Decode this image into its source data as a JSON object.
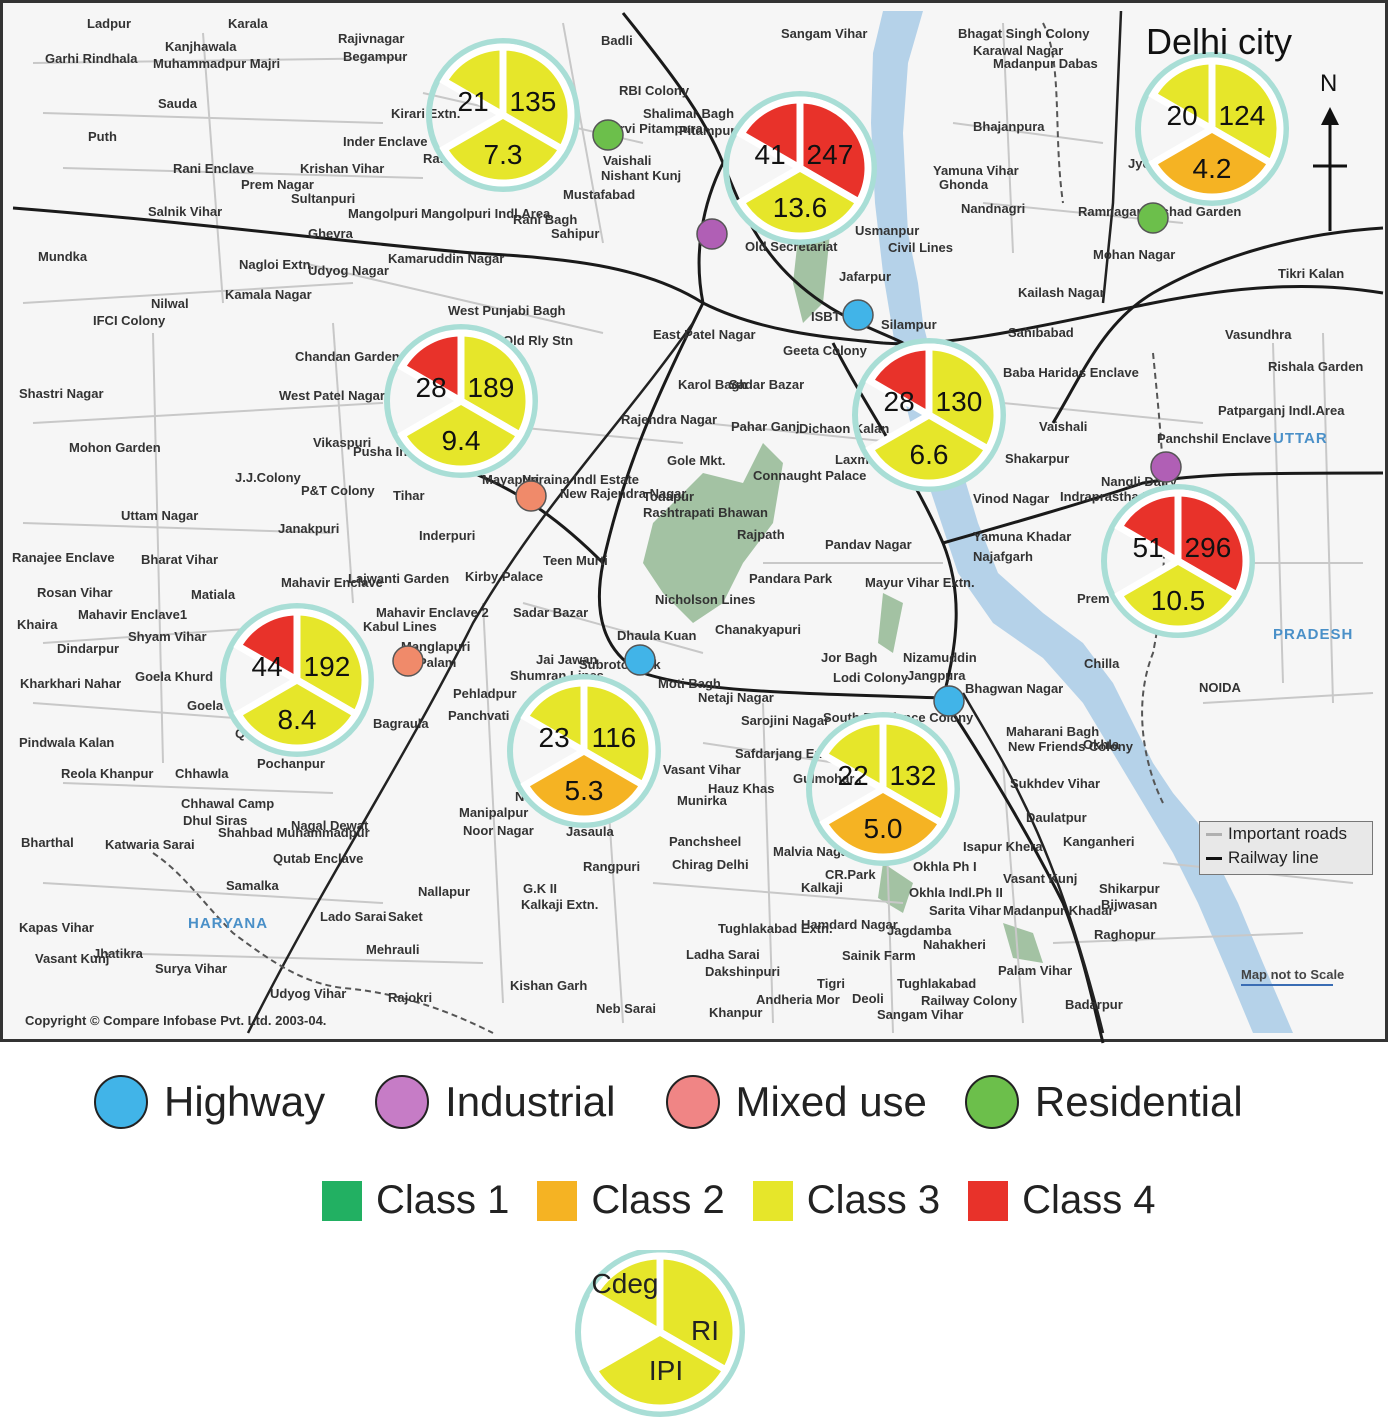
{
  "map": {
    "title": "Delhi city",
    "north_label": "N",
    "copyright": "Copyright © Compare Infobase Pvt. Ltd. 2003-04.",
    "scale_note": "Map not to Scale",
    "legend_box": {
      "roads": "Important roads",
      "rail": "Railway line"
    },
    "regions": [
      "HARYANA",
      "UTTAR",
      "PRADESH"
    ],
    "places": [
      "Ladpur",
      "Karala",
      "Rajivnagar",
      "Begampur",
      "Garhi Rindhala",
      "Kanjhawala",
      "Muhammadpur Majri",
      "Badli",
      "Sangam Vihar",
      "Bhagat Singh Colony",
      "Karawal Nagar",
      "Madanpur Dabas",
      "Sauda",
      "Puth",
      "Kirari Extn.",
      "Inder Enclave",
      "Krishan Vihar",
      "Rasulpur",
      "Rani Enclave",
      "Prem Nagar",
      "Sultanpuri",
      "Mangolpuri",
      "Mangolpuri Indl.Area",
      "Ghevra",
      "Salnik Vihar",
      "Rani Bagh",
      "Sahipur",
      "RBI Colony",
      "Shalimar Bagh",
      "Pitampura",
      "Purvi Pitampura",
      "Vaishali",
      "Nishant Kunj",
      "Mustafabad",
      "Bhajanpura",
      "Yamuna Vihar",
      "Ghonda",
      "Nandnagri",
      "Jyotinagar East",
      "Ramnagar Dilshad Garden",
      "Mohan Nagar",
      "Tikri Kalan",
      "Mundka",
      "Nagloi Extn.",
      "Udyog Nagar",
      "Kamaruddin Nagar",
      "Kamala Nagar",
      "Old Secretariat",
      "Usmanpur",
      "Civil Lines",
      "Jafarpur",
      "Nilwal",
      "IFCI Colony",
      "West Punjabi Bagh",
      "Old Rly Stn",
      "ISBT",
      "Silampur",
      "Kailash Nagar",
      "Sahibabad",
      "Vasundhra",
      "Rishala Garden",
      "Chandan Garden",
      "West Patel Nagar",
      "East Patel Nagar",
      "Karol Bagh",
      "Sadar Bazar",
      "Geeta Colony",
      "Baba Haridas Enclave",
      "Shastri Nagar",
      "Vaishali",
      "Patparganj Indl.Area",
      "Panchshil Enclave",
      "Vikaspuri",
      "Pusha Institute",
      "Rajendra Nagar",
      "Pahar Ganj",
      "Dichaon Kalan",
      "Mohon Garden",
      "J.J.Colony",
      "P&T Colony",
      "Tihar",
      "Mayapuri",
      "Naraina Indl Estate",
      "New Rajendra Nagar",
      "Gole Mkt.",
      "Connaught Palace",
      "Laxmi Nagar",
      "Shakarpur",
      "Vinod Nagar",
      "Indraprastha Extn.",
      "Nangli Dairy",
      "Uttam Nagar",
      "Janakpuri",
      "Inderpuri",
      "Todapur",
      "Rashtrapati Bhawan",
      "Rajpath",
      "Pandav Nagar",
      "Yamuna Khadar",
      "Najafgarh",
      "Ranajee Enclave",
      "Bharat Vihar",
      "Matiala",
      "Mahavir Enclave",
      "Lajwanti Garden",
      "Kirby Palace",
      "Teen Murti",
      "Pandara Park",
      "Mayur Vihar Extn.",
      "Prem Nagar",
      "Rosan Vihar",
      "Mahavir Enclave1",
      "Mahavir Enclave 2",
      "Kabul Lines",
      "Sadar Bazar",
      "Nicholson Lines",
      "Dhaula Kuan",
      "Chanakyapuri",
      "Khaira",
      "Shyam Vihar",
      "Dindarpur",
      "Manglapuri",
      "Palam",
      "Jai Jawan",
      "Shumran Lines",
      "Subroto Park",
      "Moti Bagh",
      "Jor Bagh",
      "Lodi Colony",
      "Nizamuddin",
      "Jangpura",
      "Bhagwan Nagar",
      "Chilla",
      "NOIDA",
      "Kharkhari Nahar",
      "Goela Khurd",
      "Goela",
      "Qutub Vihar",
      "Pochanpur",
      "Bagraula",
      "Pehladpur",
      "Panchvati",
      "Netaji Nagar",
      "Sarojini Nagar",
      "Defence Colony",
      "South Extn.",
      "Maharani Bagh",
      "New Friends Colony",
      "Okhla",
      "Pindwala Kalan",
      "Reola Khanpur",
      "Chhawla",
      "Safdarjang Enclave",
      "Hauz Khas",
      "Gulmohar Park",
      "Vasant Vihar",
      "Munirka",
      "Naraina",
      "Sukhdev Vihar",
      "Chhawal Camp",
      "Dhul Siras",
      "Shahbad Muhammadpur",
      "Nagal Dewat",
      "Manipalpur",
      "Noor Nagar",
      "Jasaula",
      "Daulatpur",
      "Kanganheri",
      "Bharthal",
      "Katwaria Sarai",
      "Qutab Enclave",
      "Panchsheel",
      "Chirag Delhi",
      "Malvia Nagar",
      "CR.Park",
      "Kalkaji",
      "Okhla Ph I",
      "Isapur Khera",
      "Vasant Kunj",
      "Samalka",
      "Rangpuri",
      "Nallapur",
      "G.K II",
      "Kalkaji Extn.",
      "Okhla Indl.Ph II",
      "Sarita Vihar",
      "Madanpur Khadar",
      "Shikarpur",
      "Bijwasan",
      "Kapas Vihar",
      "Lado Sarai",
      "Saket",
      "Tughlakabad Extn.",
      "Hamdard Nagar",
      "Jagdamba",
      "Nahakheri",
      "Raghopur",
      "Jhatikra",
      "Surya Vihar",
      "Vasant Kunj",
      "Mehrauli",
      "Ladha Sarai",
      "Dakshinpuri",
      "Sainik Farm",
      "Tigri",
      "Tughlakabad",
      "Palam Vihar",
      "Udyog Vihar",
      "Rajokri",
      "Kishan Garh",
      "Neb Sarai",
      "Andheria Mor",
      "Khanpur",
      "Deoli",
      "Sangam Vihar",
      "Railway Colony",
      "Badarpur"
    ]
  },
  "sites": [
    {
      "type": "Residential",
      "color": "#6cbf4b"
    },
    {
      "type": "Industrial",
      "color": "#b05fb5"
    },
    {
      "type": "Highway",
      "color": "#41b4e8"
    },
    {
      "type": "Industrial",
      "color": "#b05fb5"
    },
    {
      "type": "Residential",
      "color": "#6cbf4b"
    },
    {
      "type": "Mixed use",
      "color": "#f08a6a"
    },
    {
      "type": "Mixed use",
      "color": "#f08a6a"
    },
    {
      "type": "Highway",
      "color": "#41b4e8"
    },
    {
      "type": "Highway",
      "color": "#41b4e8"
    }
  ],
  "pies": [
    {
      "cdeg": "21",
      "ri": "135",
      "ipi": "7.3",
      "cdeg_class": "Class 3",
      "ri_class": "Class 3",
      "ipi_class": "Class 3"
    },
    {
      "cdeg": "41",
      "ri": "247",
      "ipi": "13.6",
      "cdeg_class": "Class 4",
      "ri_class": "Class 4",
      "ipi_class": "Class 3"
    },
    {
      "cdeg": "20",
      "ri": "124",
      "ipi": "4.2",
      "cdeg_class": "Class 3",
      "ri_class": "Class 3",
      "ipi_class": "Class 2"
    },
    {
      "cdeg": "28",
      "ri": "189",
      "ipi": "9.4",
      "cdeg_class": "Class 4",
      "ri_class": "Class 3",
      "ipi_class": "Class 3"
    },
    {
      "cdeg": "28",
      "ri": "130",
      "ipi": "6.6",
      "cdeg_class": "Class 4",
      "ri_class": "Class 3",
      "ipi_class": "Class 3"
    },
    {
      "cdeg": "51",
      "ri": "296",
      "ipi": "10.5",
      "cdeg_class": "Class 4",
      "ri_class": "Class 4",
      "ipi_class": "Class 3"
    },
    {
      "cdeg": "44",
      "ri": "192",
      "ipi": "8.4",
      "cdeg_class": "Class 4",
      "ri_class": "Class 3",
      "ipi_class": "Class 3"
    },
    {
      "cdeg": "23",
      "ri": "116",
      "ipi": "5.3",
      "cdeg_class": "Class 3",
      "ri_class": "Class 3",
      "ipi_class": "Class 2"
    },
    {
      "cdeg": "22",
      "ri": "132",
      "ipi": "5.0",
      "cdeg_class": "Class 3",
      "ri_class": "Class 3",
      "ipi_class": "Class 2"
    }
  ],
  "legend": {
    "site_types": [
      {
        "label": "Highway",
        "color": "#41b4e8"
      },
      {
        "label": "Industrial",
        "color": "#c67cc6"
      },
      {
        "label": "Mixed use",
        "color": "#f08585"
      },
      {
        "label": "Residential",
        "color": "#6cbf4b"
      }
    ],
    "classes": [
      {
        "label": "Class 1",
        "color": "#22b062"
      },
      {
        "label": "Class 2",
        "color": "#f5b323"
      },
      {
        "label": "Class 3",
        "color": "#e6e62a"
      },
      {
        "label": "Class 4",
        "color": "#e8322a"
      }
    ],
    "key": {
      "cdeg": "Cdeg",
      "ri": "RI",
      "ipi": "IPI"
    }
  }
}
